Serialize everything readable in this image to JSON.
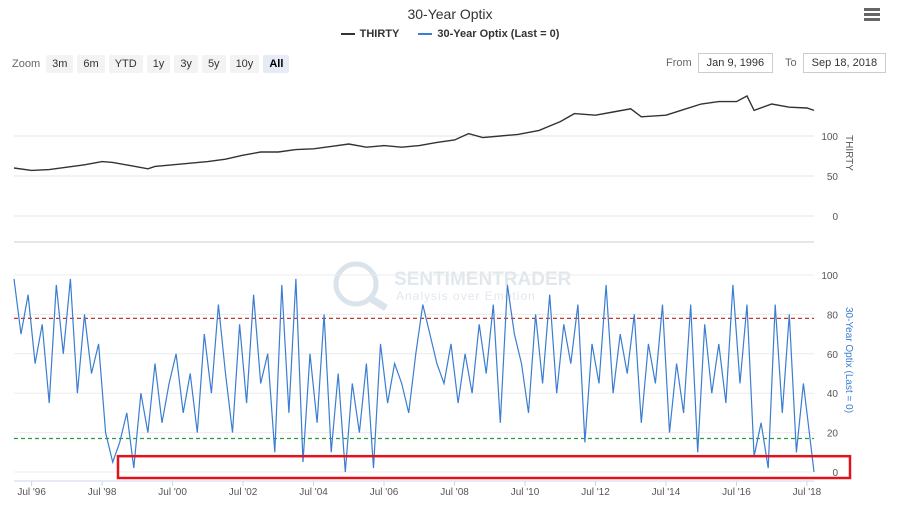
{
  "header": {
    "title": "30-Year Optix",
    "legend": [
      {
        "name": "THIRTY",
        "color": "#333333"
      },
      {
        "name": "30-Year Optix (Last = 0)",
        "color": "#3a7dd1"
      }
    ]
  },
  "zoom": {
    "label": "Zoom",
    "buttons": [
      "3m",
      "6m",
      "YTD",
      "1y",
      "3y",
      "5y",
      "10y",
      "All"
    ],
    "active": "All"
  },
  "range": {
    "from_label": "From",
    "from_value": "Jan 9, 1996",
    "to_label": "To",
    "to_value": "Sep 18, 2018"
  },
  "watermark": {
    "name": "SENTIMENTRADER",
    "tagline": "Analysis over Emotion"
  },
  "chart_data": [
    {
      "type": "line",
      "series": [
        {
          "name": "THIRTY",
          "color": "#333333"
        }
      ],
      "ylabel": "THIRTY",
      "yticks": [
        0,
        50,
        100
      ],
      "ylim": [
        0,
        150
      ],
      "x_start": 1996.0,
      "x_end": 2018.7,
      "x": [
        1996.0,
        1996.5,
        1997.0,
        1997.5,
        1998.0,
        1998.5,
        1998.8,
        1999.3,
        1999.8,
        2000.0,
        2000.5,
        2001.0,
        2001.5,
        2002.0,
        2002.5,
        2003.0,
        2003.5,
        2004.0,
        2004.5,
        2005.0,
        2005.5,
        2006.0,
        2006.5,
        2007.0,
        2007.5,
        2008.0,
        2008.5,
        2008.9,
        2009.3,
        2009.8,
        2010.3,
        2010.9,
        2011.5,
        2011.9,
        2012.5,
        2013.0,
        2013.5,
        2013.8,
        2014.5,
        2015.0,
        2015.5,
        2016.0,
        2016.5,
        2016.8,
        2017.0,
        2017.5,
        2018.0,
        2018.5,
        2018.7
      ],
      "values": [
        60,
        57,
        58,
        61,
        64,
        68,
        67,
        63,
        59,
        62,
        64,
        66,
        68,
        71,
        76,
        80,
        80,
        83,
        84,
        87,
        90,
        86,
        88,
        86,
        88,
        92,
        95,
        103,
        98,
        100,
        102,
        107,
        118,
        128,
        126,
        130,
        134,
        124,
        126,
        133,
        140,
        143,
        143,
        150,
        132,
        140,
        136,
        135,
        132
      ]
    },
    {
      "type": "line",
      "series": [
        {
          "name": "30-Year Optix (Last = 0)",
          "color": "#3a7dd1",
          "last": 0
        }
      ],
      "ylabel": "30-Year Optix (Last = 0)",
      "yticks": [
        0,
        20,
        40,
        60,
        80,
        100
      ],
      "ylim": [
        0,
        100
      ],
      "reference_lines": [
        {
          "value": 78,
          "color": "#c0392b"
        },
        {
          "value": 17,
          "color": "#27a035"
        }
      ],
      "highlight_band": [
        0,
        6
      ],
      "xtick_labels": [
        "Jul '96",
        "Jul '98",
        "Jul '00",
        "Jul '02",
        "Jul '04",
        "Jul '06",
        "Jul '08",
        "Jul '10",
        "Jul '12",
        "Jul '14",
        "Jul '16",
        "Jul '18"
      ],
      "xtick_values": [
        1996.5,
        1998.5,
        2000.5,
        2002.5,
        2004.5,
        2006.5,
        2008.5,
        2010.5,
        2012.5,
        2014.5,
        2016.5,
        2018.5
      ],
      "x_start": 1996.0,
      "x_end": 2018.7,
      "x": [
        1996.0,
        1996.2,
        1996.4,
        1996.6,
        1996.8,
        1997.0,
        1997.2,
        1997.4,
        1997.6,
        1997.8,
        1998.0,
        1998.2,
        1998.4,
        1998.6,
        1998.8,
        1999.0,
        1999.2,
        1999.4,
        1999.6,
        1999.8,
        2000.0,
        2000.2,
        2000.4,
        2000.6,
        2000.8,
        2001.0,
        2001.2,
        2001.4,
        2001.6,
        2001.8,
        2002.0,
        2002.2,
        2002.4,
        2002.6,
        2002.8,
        2003.0,
        2003.2,
        2003.4,
        2003.6,
        2003.8,
        2004.0,
        2004.2,
        2004.4,
        2004.6,
        2004.8,
        2005.0,
        2005.2,
        2005.4,
        2005.6,
        2005.8,
        2006.0,
        2006.2,
        2006.4,
        2006.6,
        2006.8,
        2007.0,
        2007.2,
        2007.4,
        2007.6,
        2007.8,
        2008.0,
        2008.2,
        2008.4,
        2008.6,
        2008.8,
        2009.0,
        2009.2,
        2009.4,
        2009.6,
        2009.8,
        2010.0,
        2010.2,
        2010.4,
        2010.6,
        2010.8,
        2011.0,
        2011.2,
        2011.4,
        2011.6,
        2011.8,
        2012.0,
        2012.2,
        2012.4,
        2012.6,
        2012.8,
        2013.0,
        2013.2,
        2013.4,
        2013.6,
        2013.8,
        2014.0,
        2014.2,
        2014.4,
        2014.6,
        2014.8,
        2015.0,
        2015.2,
        2015.4,
        2015.6,
        2015.8,
        2016.0,
        2016.2,
        2016.4,
        2016.6,
        2016.8,
        2017.0,
        2017.2,
        2017.4,
        2017.6,
        2017.8,
        2018.0,
        2018.2,
        2018.4,
        2018.6,
        2018.7
      ],
      "values": [
        98,
        70,
        90,
        55,
        75,
        35,
        95,
        60,
        98,
        40,
        80,
        50,
        65,
        20,
        5,
        15,
        30,
        2,
        40,
        20,
        55,
        25,
        45,
        60,
        30,
        50,
        20,
        70,
        40,
        85,
        50,
        20,
        75,
        35,
        90,
        45,
        60,
        10,
        95,
        30,
        98,
        5,
        60,
        25,
        80,
        10,
        50,
        0,
        45,
        20,
        55,
        2,
        65,
        35,
        55,
        45,
        30,
        60,
        85,
        70,
        55,
        45,
        65,
        35,
        60,
        40,
        75,
        50,
        85,
        25,
        95,
        70,
        55,
        30,
        80,
        45,
        90,
        40,
        75,
        55,
        85,
        15,
        65,
        45,
        95,
        40,
        70,
        50,
        80,
        25,
        65,
        45,
        85,
        20,
        55,
        30,
        85,
        10,
        75,
        40,
        65,
        35,
        95,
        45,
        85,
        8,
        25,
        2,
        85,
        30,
        80,
        10,
        45,
        15,
        0
      ]
    }
  ]
}
